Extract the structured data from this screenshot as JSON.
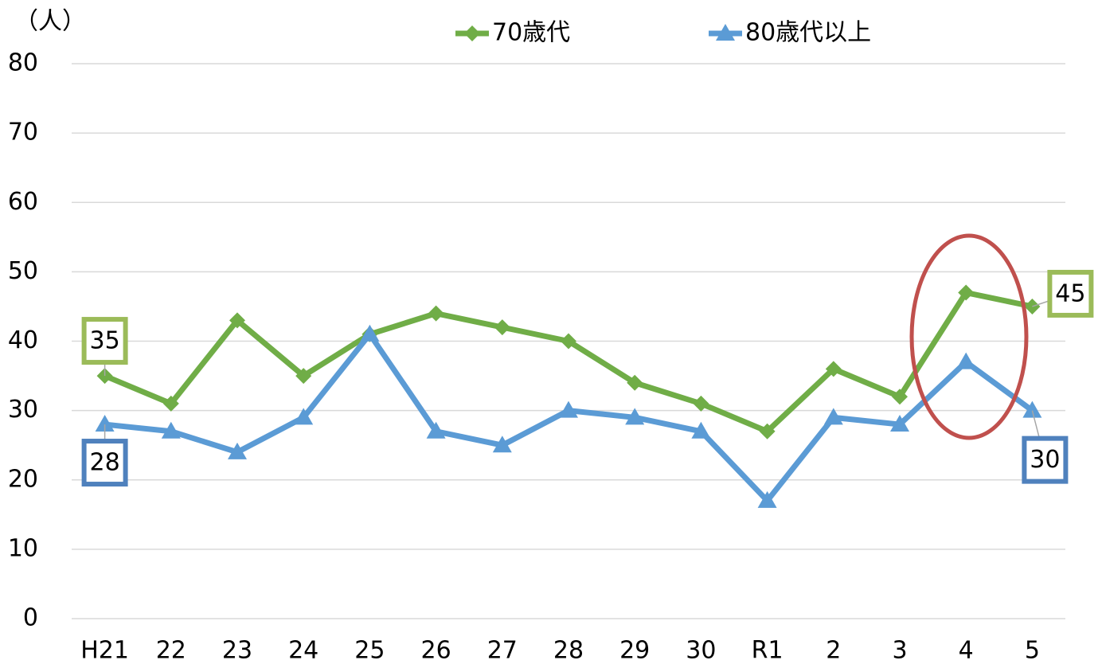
{
  "chart_data": {
    "type": "line",
    "y_unit_label": "（人）",
    "categories": [
      "H21",
      "22",
      "23",
      "24",
      "25",
      "26",
      "27",
      "28",
      "29",
      "30",
      "R1",
      "2",
      "3",
      "4",
      "5"
    ],
    "series": [
      {
        "name": "70歳代",
        "color": "#70ad47",
        "label_border": "#9bbb59",
        "marker": "diamond",
        "values": [
          35,
          31,
          43,
          35,
          41,
          44,
          42,
          40,
          34,
          31,
          27,
          36,
          32,
          47,
          45
        ]
      },
      {
        "name": "80歳代以上",
        "color": "#5b9bd5",
        "label_border": "#4f81bd",
        "marker": "triangle",
        "values": [
          28,
          27,
          24,
          29,
          41,
          27,
          25,
          30,
          29,
          27,
          17,
          29,
          28,
          37,
          30
        ]
      }
    ],
    "ylim": [
      0,
      80
    ],
    "yticks": [
      0,
      10,
      20,
      30,
      40,
      50,
      60,
      70,
      80
    ],
    "grid": true
  }
}
